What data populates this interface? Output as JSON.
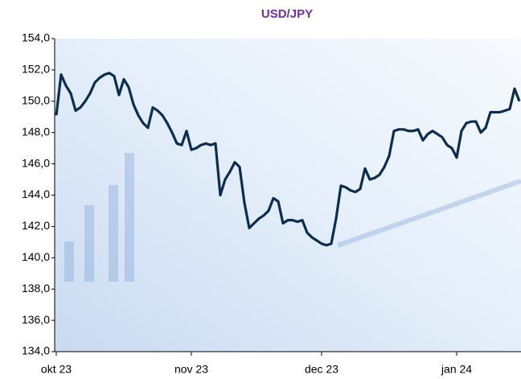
{
  "chart_data": {
    "type": "line",
    "title": "USD/JPY",
    "categories": [
      "okt 23",
      null,
      null,
      null,
      null,
      null,
      null,
      null,
      null,
      null,
      null,
      null,
      null,
      null,
      null,
      null,
      null,
      null,
      null,
      null,
      null,
      null,
      null,
      null,
      null,
      null,
      null,
      null,
      "nov 23",
      null,
      null,
      null,
      null,
      null,
      null,
      null,
      null,
      null,
      null,
      null,
      null,
      null,
      null,
      null,
      null,
      null,
      null,
      null,
      null,
      null,
      null,
      null,
      null,
      null,
      null,
      "dec 23",
      null,
      null,
      null,
      null,
      null,
      null,
      null,
      null,
      null,
      null,
      null,
      null,
      null,
      null,
      null,
      null,
      null,
      null,
      null,
      null,
      null,
      null,
      null,
      null,
      null,
      null,
      null,
      "jan 24",
      null,
      null,
      null,
      null,
      null,
      null,
      null,
      null,
      null,
      null,
      null,
      null,
      null
    ],
    "series": [
      {
        "name": "USD/JPY",
        "color": "#0d2d4f",
        "values": [
          149.1,
          151.7,
          151.0,
          150.5,
          149.4,
          149.6,
          150.0,
          150.5,
          151.2,
          151.5,
          151.7,
          151.8,
          151.6,
          150.4,
          151.4,
          150.9,
          149.8,
          149.1,
          148.6,
          148.3,
          149.6,
          149.4,
          149.1,
          148.6,
          148.0,
          147.3,
          147.2,
          148.1,
          146.9,
          147.0,
          147.2,
          147.3,
          147.2,
          147.3,
          144.0,
          145.0,
          145.5,
          146.1,
          145.8,
          143.5,
          141.9,
          142.2,
          142.5,
          142.7,
          143.0,
          143.8,
          143.6,
          142.2,
          142.4,
          142.4,
          142.3,
          142.4,
          141.6,
          141.3,
          141.1,
          140.9,
          140.8,
          140.9,
          142.5,
          144.6,
          144.5,
          144.3,
          144.2,
          144.4,
          145.7,
          145.0,
          145.1,
          145.3,
          145.8,
          146.5,
          148.1,
          148.2,
          148.2,
          148.1,
          148.1,
          148.2,
          147.5,
          147.9,
          148.1,
          147.9,
          147.7,
          147.2,
          147.0,
          146.4,
          148.1,
          148.6,
          148.7,
          148.7,
          148.0,
          148.3,
          149.3,
          149.3,
          149.3,
          149.4,
          149.5,
          150.8,
          150.0
        ]
      }
    ],
    "ylim": [
      134,
      154
    ],
    "yticks": [
      {
        "value": 134,
        "label": "134,0"
      },
      {
        "value": 136,
        "label": "136,0"
      },
      {
        "value": 138,
        "label": "138,0"
      },
      {
        "value": 140,
        "label": "140,0"
      },
      {
        "value": 142,
        "label": "142,0"
      },
      {
        "value": 144,
        "label": "144,0"
      },
      {
        "value": 146,
        "label": "146,0"
      },
      {
        "value": 148,
        "label": "148,0"
      },
      {
        "value": 150,
        "label": "150,0"
      },
      {
        "value": 152,
        "label": "152,0"
      },
      {
        "value": 154,
        "label": "154,0"
      }
    ]
  }
}
